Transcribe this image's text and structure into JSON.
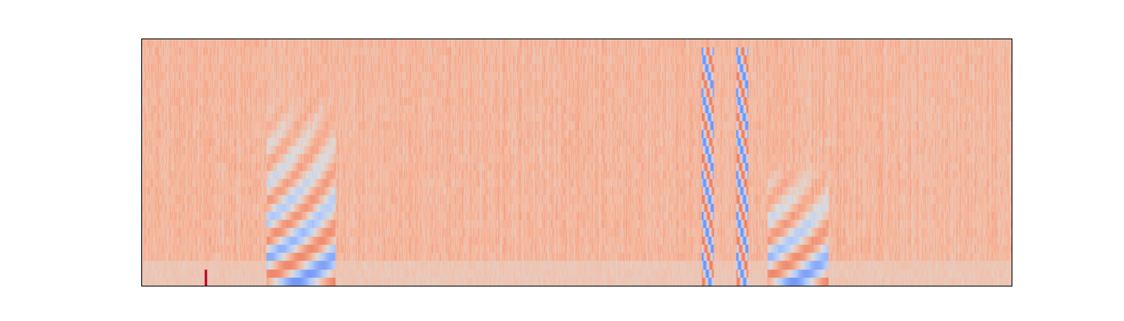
{
  "chart_data": {
    "type": "heatmap",
    "title": "",
    "xlabel": "",
    "ylabel": "",
    "axes_visible": false,
    "grid": false,
    "legend": "none",
    "colormap": "coolwarm",
    "colormap_stops": [
      "#3b4cc0",
      "#7396f5",
      "#b0cbfc",
      "#dddcdc",
      "#f7b79b",
      "#ee8468",
      "#b40426"
    ],
    "value_range": [
      0,
      1
    ],
    "background_level": 0.66,
    "frame_color": "#000000",
    "n_time_frames": 1083,
    "n_freq_bins": 30,
    "time_range": [
      0,
      1
    ],
    "freq_range": [
      0,
      1
    ],
    "events": [
      {
        "start": 0.143,
        "end": 0.222,
        "pattern": "harmonic-rising",
        "max_freq": 0.8,
        "intensity": 0.9
      },
      {
        "start": 0.643,
        "end": 0.657,
        "pattern": "vertical-harmonic",
        "max_freq": 0.98,
        "intensity": 1.0
      },
      {
        "start": 0.683,
        "end": 0.697,
        "pattern": "vertical-harmonic",
        "max_freq": 0.98,
        "intensity": 1.0
      },
      {
        "start": 0.719,
        "end": 0.789,
        "pattern": "harmonic-rising",
        "max_freq": 0.52,
        "intensity": 0.9
      }
    ],
    "click_marks": [
      {
        "time": 0.073,
        "freq_max": 0.05,
        "level": 1.0
      }
    ],
    "low_freq_band": {
      "freq_max": 0.09,
      "level": 0.6
    }
  }
}
